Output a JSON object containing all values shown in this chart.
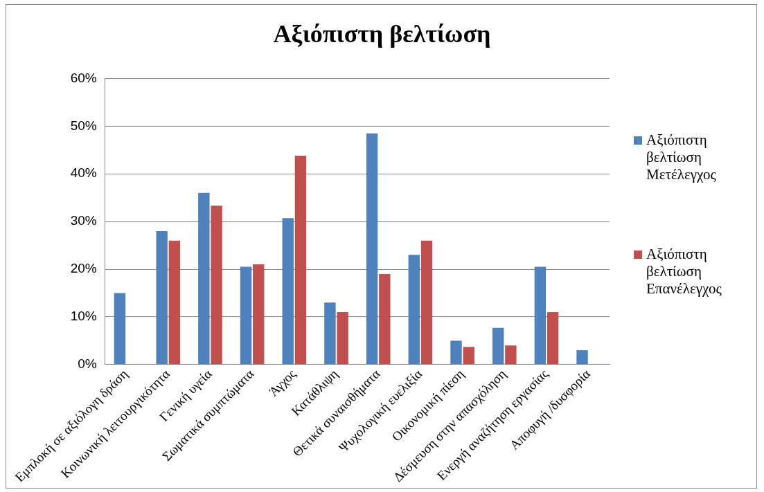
{
  "chart_data": {
    "type": "bar",
    "title": "Αξιόπιστη βελτίωση",
    "categories": [
      "Εμπλοκή σε αξιόλογη δράση",
      "Κοινωνική λειτουργικότητα",
      "Γενική υγεία",
      "Σωματικά συμπτώματα",
      "Άγχος",
      "Κατάθλιψη",
      "Θετικά συναισθήματα",
      "Ψυχολογική ευελιξία",
      "Οικονομική πίεση",
      "Δέσμευση στην απασχόληση",
      "Ενεργή αναζήτηση εργασίας",
      "Αποφυγή /δυσφορία"
    ],
    "series": [
      {
        "name": "Αξιόπιστη βελτίωση Μετέλεγχος",
        "color": "#4f81bd",
        "values": [
          15,
          28,
          36,
          20.5,
          30.7,
          13,
          48.5,
          23,
          5,
          7.7,
          20.5,
          3
        ]
      },
      {
        "name": "Αξιόπιστη βελτίωση Επανέλεγχος",
        "color": "#c0504d",
        "values": [
          null,
          26,
          33.3,
          21,
          43.8,
          11,
          19,
          26,
          3.7,
          4,
          11,
          null
        ]
      }
    ],
    "ylim": [
      0,
      60
    ],
    "yticks": [
      {
        "value": 0,
        "label": "0%"
      },
      {
        "value": 10,
        "label": "10%"
      },
      {
        "value": 20,
        "label": "20%"
      },
      {
        "value": 30,
        "label": "30%"
      },
      {
        "value": 40,
        "label": "40%"
      },
      {
        "value": 50,
        "label": "50%"
      },
      {
        "value": 60,
        "label": "60%"
      }
    ],
    "grid": "y",
    "legend": "right"
  }
}
